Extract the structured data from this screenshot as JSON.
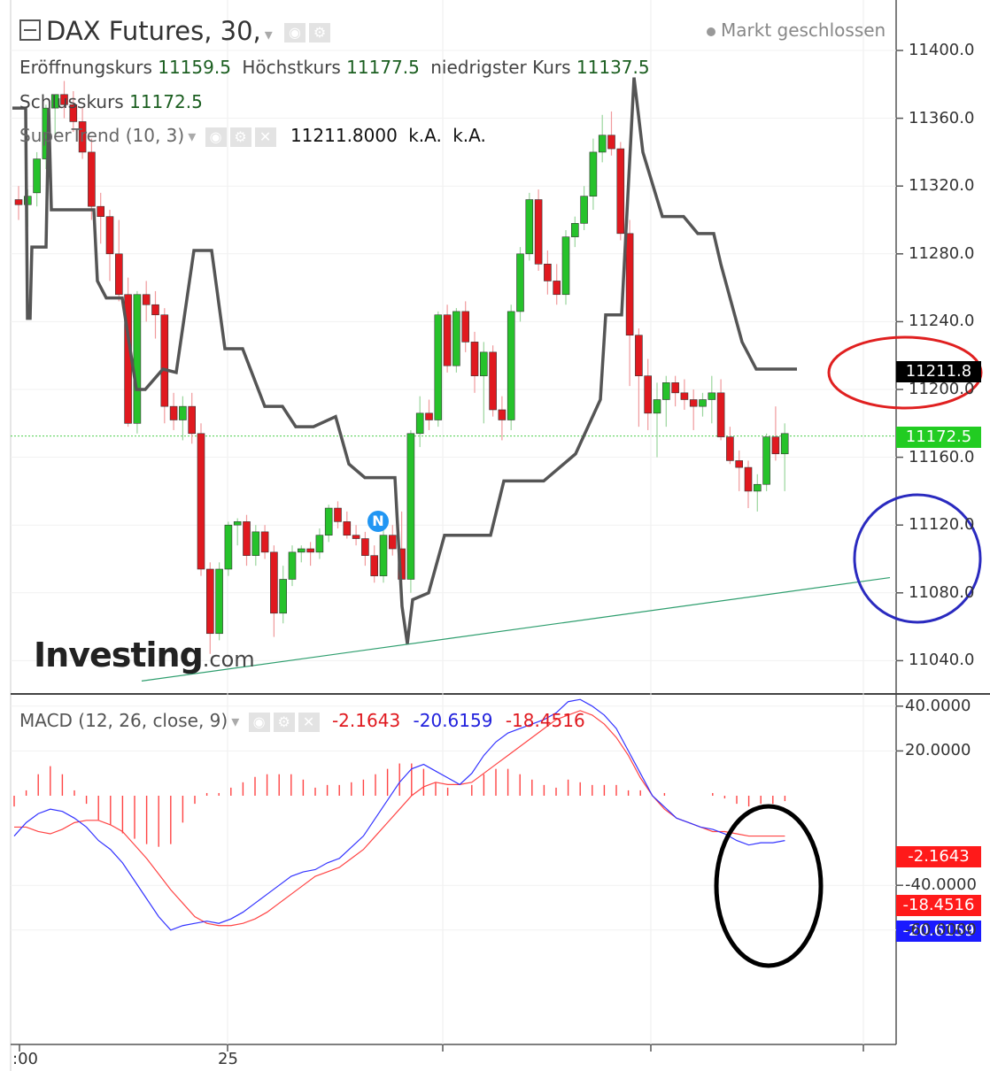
{
  "header": {
    "symbol_title": "DAX Futures, 30,",
    "status_text": "Markt geschlossen",
    "ohlc": [
      {
        "label": "Eröffnungskurs",
        "value": "11159.5"
      },
      {
        "label": "Höchstkurs",
        "value": "11177.5"
      },
      {
        "label": "niedrigster Kurs",
        "value": "11137.5"
      }
    ],
    "close": {
      "label": "Schlusskurs",
      "value": "11172.5"
    }
  },
  "indicators": {
    "supertrend": {
      "label": "SuperTrend (10, 3)",
      "value": "11211.8000",
      "extra1": "k.A.",
      "extra2": "k.A."
    },
    "macd": {
      "label": "MACD (12, 26, close, 9)",
      "hist": "-2.1643",
      "macd": "-20.6159",
      "signal": "-18.4516"
    }
  },
  "watermark": {
    "brand": "Investing",
    "suffix": ".com"
  },
  "event_marker": "N",
  "icons": [
    "collapse-icon",
    "chevron-down-icon",
    "eye-icon",
    "gear-icon",
    "close-icon"
  ],
  "colors": {
    "up": "#26c22b",
    "down": "#e0191f",
    "supertrend": "#555555",
    "macd_line": "#3333ff",
    "signal_line": "#ff4444",
    "histogram": "#ff4444",
    "trendline": "#2e9e6e",
    "annotation_red": "#e02020",
    "annotation_blue": "#2a2abf",
    "annotation_black": "#000000"
  },
  "chart_data": [
    {
      "type": "candlestick",
      "title": "DAX Futures, 30,",
      "ylim": [
        11020,
        11420
      ],
      "y_ticks": [
        "11040.0",
        "11080.0",
        "11120.0",
        "11160.0",
        "11200.0",
        "11240.0",
        "11280.0",
        "11320.0",
        "11360.0",
        "11400.0"
      ],
      "x_ticks": [
        ":00",
        "25"
      ],
      "last_price": "11172.5",
      "supertrend_last": "11211.8",
      "candles": [
        [
          11312,
          11320,
          11300,
          11309
        ],
        [
          11309,
          11318,
          11296,
          11314
        ],
        [
          11316,
          11340,
          11308,
          11336
        ],
        [
          11336,
          11368,
          11330,
          11366
        ],
        [
          11366,
          11374,
          11350,
          11374
        ],
        [
          11374,
          11382,
          11360,
          11368
        ],
        [
          11368,
          11376,
          11352,
          11358
        ],
        [
          11358,
          11366,
          11336,
          11340
        ],
        [
          11340,
          11348,
          11300,
          11308
        ],
        [
          11308,
          11316,
          11286,
          11302
        ],
        [
          11302,
          11306,
          11264,
          11280
        ],
        [
          11280,
          11300,
          11252,
          11256
        ],
        [
          11256,
          11266,
          11178,
          11180
        ],
        [
          11180,
          11258,
          11174,
          11256
        ],
        [
          11256,
          11264,
          11240,
          11250
        ],
        [
          11250,
          11258,
          11230,
          11244
        ],
        [
          11244,
          11248,
          11180,
          11190
        ],
        [
          11190,
          11198,
          11176,
          11182
        ],
        [
          11182,
          11196,
          11170,
          11190
        ],
        [
          11190,
          11198,
          11168,
          11174
        ],
        [
          11174,
          11180,
          11090,
          11094
        ],
        [
          11094,
          11098,
          11044,
          11056
        ],
        [
          11056,
          11098,
          11052,
          11094
        ],
        [
          11094,
          11122,
          11090,
          11120
        ],
        [
          11120,
          11124,
          11108,
          11122
        ],
        [
          11122,
          11126,
          11096,
          11102
        ],
        [
          11102,
          11120,
          11096,
          11116
        ],
        [
          11116,
          11120,
          11100,
          11104
        ],
        [
          11104,
          11108,
          11054,
          11068
        ],
        [
          11068,
          11096,
          11062,
          11088
        ],
        [
          11088,
          11108,
          11084,
          11104
        ],
        [
          11104,
          11108,
          11098,
          11106
        ],
        [
          11106,
          11110,
          11096,
          11104
        ],
        [
          11104,
          11118,
          11100,
          11114
        ],
        [
          11114,
          11132,
          11110,
          11130
        ],
        [
          11130,
          11134,
          11118,
          11122
        ],
        [
          11122,
          11128,
          11112,
          11114
        ],
        [
          11114,
          11120,
          11108,
          11112
        ],
        [
          11112,
          11116,
          11096,
          11102
        ],
        [
          11102,
          11108,
          11086,
          11090
        ],
        [
          11090,
          11118,
          11086,
          11114
        ],
        [
          11114,
          11120,
          11102,
          11106
        ],
        [
          11106,
          11128,
          11080,
          11088
        ],
        [
          11088,
          11176,
          11080,
          11174
        ],
        [
          11174,
          11196,
          11166,
          11186
        ],
        [
          11186,
          11194,
          11176,
          11182
        ],
        [
          11182,
          11246,
          11178,
          11244
        ],
        [
          11244,
          11250,
          11210,
          11214
        ],
        [
          11214,
          11248,
          11210,
          11246
        ],
        [
          11246,
          11252,
          11222,
          11228
        ],
        [
          11228,
          11234,
          11198,
          11208
        ],
        [
          11208,
          11228,
          11180,
          11222
        ],
        [
          11222,
          11226,
          11184,
          11188
        ],
        [
          11188,
          11196,
          11170,
          11182
        ],
        [
          11182,
          11250,
          11176,
          11246
        ],
        [
          11246,
          11284,
          11240,
          11280
        ],
        [
          11280,
          11316,
          11276,
          11312
        ],
        [
          11312,
          11318,
          11270,
          11274
        ],
        [
          11274,
          11282,
          11256,
          11264
        ],
        [
          11264,
          11274,
          11250,
          11256
        ],
        [
          11256,
          11294,
          11250,
          11290
        ],
        [
          11290,
          11302,
          11284,
          11298
        ],
        [
          11298,
          11320,
          11294,
          11314
        ],
        [
          11314,
          11348,
          11306,
          11340
        ],
        [
          11340,
          11362,
          11334,
          11350
        ],
        [
          11350,
          11364,
          11338,
          11342
        ],
        [
          11342,
          11346,
          11288,
          11292
        ],
        [
          11292,
          11300,
          11202,
          11232
        ],
        [
          11232,
          11236,
          11178,
          11208
        ],
        [
          11208,
          11218,
          11176,
          11186
        ],
        [
          11186,
          11204,
          11160,
          11194
        ],
        [
          11194,
          11208,
          11178,
          11204
        ],
        [
          11204,
          11208,
          11190,
          11198
        ],
        [
          11198,
          11206,
          11188,
          11194
        ],
        [
          11194,
          11200,
          11176,
          11190
        ],
        [
          11190,
          11198,
          11184,
          11194
        ],
        [
          11194,
          11208,
          11180,
          11198
        ],
        [
          11198,
          11206,
          11170,
          11172
        ],
        [
          11172,
          11178,
          11156,
          11158
        ],
        [
          11158,
          11164,
          11140,
          11154
        ],
        [
          11154,
          11158,
          11130,
          11140
        ],
        [
          11140,
          11150,
          11128,
          11144
        ],
        [
          11144,
          11174,
          11140,
          11172
        ],
        [
          11172,
          11190,
          11158,
          11162
        ],
        [
          11162,
          11180,
          11140,
          11174
        ]
      ],
      "supertrend": [
        [
          0,
          11366
        ],
        [
          15,
          11366
        ],
        [
          17,
          11242
        ],
        [
          20,
          11242
        ],
        [
          22,
          11284
        ],
        [
          38,
          11284
        ],
        [
          41,
          11366
        ],
        [
          44,
          11306
        ],
        [
          92,
          11306
        ],
        [
          96,
          11264
        ],
        [
          106,
          11254
        ],
        [
          124,
          11254
        ],
        [
          140,
          11200
        ],
        [
          150,
          11200
        ],
        [
          170,
          11212
        ],
        [
          185,
          11210
        ],
        [
          205,
          11282
        ],
        [
          225,
          11282
        ],
        [
          240,
          11224
        ],
        [
          260,
          11224
        ],
        [
          285,
          11190
        ],
        [
          305,
          11190
        ],
        [
          320,
          11178
        ],
        [
          340,
          11178
        ],
        [
          365,
          11184
        ],
        [
          380,
          11156
        ],
        [
          398,
          11148
        ],
        [
          432,
          11148
        ],
        [
          440,
          11072
        ],
        [
          446,
          11050
        ],
        [
          452,
          11076
        ],
        [
          470,
          11080
        ],
        [
          488,
          11114
        ],
        [
          540,
          11114
        ],
        [
          555,
          11146
        ],
        [
          600,
          11146
        ],
        [
          636,
          11162
        ],
        [
          664,
          11194
        ],
        [
          670,
          11244
        ],
        [
          688,
          11244
        ],
        [
          702,
          11384
        ],
        [
          712,
          11340
        ],
        [
          734,
          11302
        ],
        [
          758,
          11302
        ],
        [
          774,
          11292
        ],
        [
          792,
          11292
        ],
        [
          800,
          11274
        ],
        [
          824,
          11228
        ],
        [
          840,
          11212
        ],
        [
          886,
          11212
        ]
      ],
      "trendline": [
        [
          160,
          11028
        ],
        [
          1005,
          11089
        ]
      ]
    },
    {
      "type": "line",
      "title": "MACD (12, 26, close, 9)",
      "ylim": [
        -65,
        47
      ],
      "y_ticks": [
        "40.0000",
        "20.0000",
        "-40.0000",
        "-60.0000"
      ],
      "series": [
        {
          "name": "MACD",
          "values": [
            -18,
            -12,
            -8,
            -6,
            -7,
            -10,
            -14,
            -20,
            -24,
            -30,
            -38,
            -46,
            -54,
            -60,
            -58,
            -57,
            -56,
            -57,
            -55,
            -52,
            -48,
            -44,
            -40,
            -36,
            -34,
            -33,
            -30,
            -28,
            -23,
            -18,
            -10,
            -2,
            6,
            12,
            14,
            11,
            8,
            5,
            10,
            18,
            24,
            28,
            30,
            32,
            34,
            37,
            42,
            43,
            40,
            36,
            30,
            20,
            10,
            0,
            -5,
            -10,
            -12,
            -14,
            -15,
            -17,
            -20,
            -22,
            -21,
            -21,
            -20
          ]
        },
        {
          "name": "Signal",
          "values": [
            -14,
            -14,
            -16,
            -17,
            -15,
            -12,
            -11,
            -11,
            -13,
            -16,
            -22,
            -28,
            -35,
            -42,
            -48,
            -54,
            -57,
            -58,
            -58,
            -57,
            -55,
            -52,
            -48,
            -44,
            -40,
            -36,
            -34,
            -32,
            -28,
            -24,
            -18,
            -12,
            -6,
            0,
            4,
            6,
            5,
            5,
            6,
            10,
            14,
            18,
            22,
            26,
            30,
            34,
            36,
            38,
            36,
            32,
            26,
            18,
            8,
            0,
            -6,
            -10,
            -12,
            -14,
            -16,
            -16,
            -17,
            -18,
            -18,
            -18,
            -18
          ]
        }
      ],
      "histogram_last": -2.1643
    }
  ]
}
